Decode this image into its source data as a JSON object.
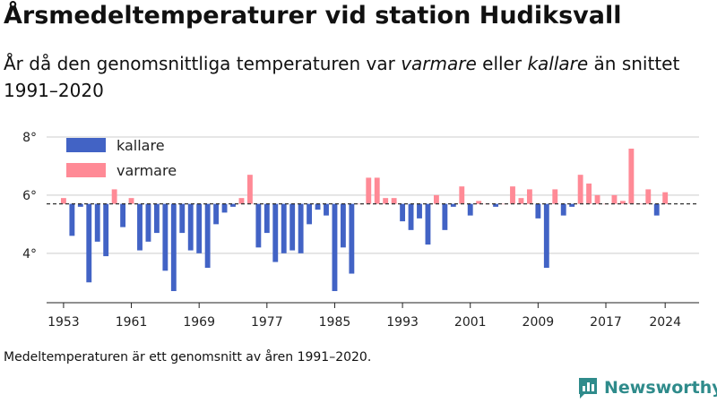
{
  "title": "Årsmedeltemperaturer vid station Hudiksvall",
  "subtitle": {
    "part1": "År då den genomsnittliga temperaturen var ",
    "em1": "varmare",
    "part2": " eller ",
    "em2": "kallare",
    "part3": " än snittet 1991–2020"
  },
  "note": "Medeltemperaturen är ett genomsnitt av åren 1991–2020.",
  "logo_text": "Newsworthy",
  "colors": {
    "kallare": "#4263c5",
    "varmare": "#ff8a96",
    "baseline": "#333333",
    "grid": "#dddddd",
    "logo": "#2f8b8b"
  },
  "chart_data": {
    "type": "bar",
    "baseline": 5.7,
    "baseline_style": "dashed",
    "ylim": [
      2.3,
      8.4
    ],
    "yticks": [
      4,
      6,
      8
    ],
    "ytick_labels": [
      "4°",
      "6°",
      "8°"
    ],
    "xticks": [
      1953,
      1961,
      1969,
      1977,
      1985,
      1993,
      2001,
      2009,
      2017,
      2024
    ],
    "xlim": [
      1951,
      2028
    ],
    "grid": true,
    "legend": {
      "position": "top-left",
      "items": [
        {
          "key": "kallare",
          "label": "kallare"
        },
        {
          "key": "varmare",
          "label": "varmare"
        }
      ]
    },
    "years": [
      1953,
      1954,
      1955,
      1956,
      1957,
      1958,
      1959,
      1960,
      1961,
      1962,
      1963,
      1964,
      1965,
      1966,
      1967,
      1968,
      1969,
      1970,
      1971,
      1972,
      1973,
      1974,
      1975,
      1976,
      1977,
      1978,
      1979,
      1980,
      1981,
      1982,
      1983,
      1984,
      1985,
      1986,
      1987,
      1988,
      1989,
      1990,
      1991,
      1992,
      1993,
      1994,
      1995,
      1996,
      1997,
      1998,
      1999,
      2000,
      2001,
      2002,
      2003,
      2004,
      2005,
      2006,
      2007,
      2008,
      2009,
      2010,
      2011,
      2012,
      2013,
      2014,
      2015,
      2016,
      2017,
      2018,
      2019,
      2020,
      2021,
      2022,
      2023,
      2024
    ],
    "values": [
      5.9,
      4.6,
      5.6,
      3.0,
      4.4,
      3.9,
      6.2,
      4.9,
      5.9,
      4.1,
      4.4,
      4.7,
      3.4,
      2.7,
      4.7,
      4.1,
      4.0,
      3.5,
      5.0,
      5.4,
      5.6,
      5.9,
      6.7,
      4.2,
      4.7,
      3.7,
      4.0,
      4.1,
      4.0,
      5.0,
      5.5,
      5.3,
      2.7,
      4.2,
      3.3,
      5.7,
      6.6,
      6.6,
      5.9,
      5.9,
      5.1,
      4.8,
      5.2,
      4.3,
      6.0,
      4.8,
      5.6,
      6.3,
      5.3,
      5.8,
      5.7,
      5.6,
      5.7,
      6.3,
      5.9,
      6.2,
      5.2,
      3.5,
      6.2,
      5.3,
      5.6,
      6.7,
      6.4,
      6.0,
      5.7,
      6.0,
      5.8,
      7.6,
      5.7,
      6.2,
      5.3,
      6.1
    ]
  }
}
